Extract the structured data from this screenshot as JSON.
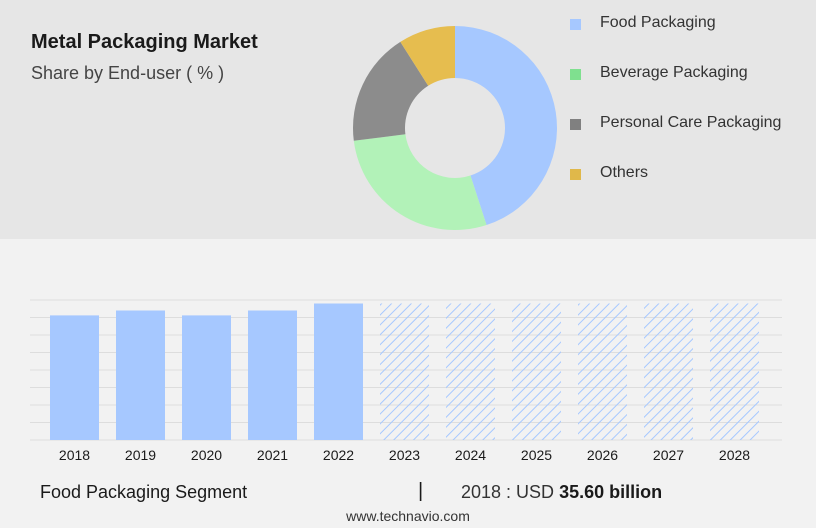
{
  "title": "Metal Packaging Market",
  "subtitle": "Share by End-user ( % )",
  "colors": {
    "food": "#a6c8ff",
    "beverage": "#b2f2b8",
    "personal_care": "#8c8c8c",
    "others": "#e6bd4f",
    "legend_beverage": "#7fe08f",
    "legend_personal_care": "#808080",
    "legend_others": "#e0b84a",
    "forecast_hatch": "#a6c8ff"
  },
  "chart_data": [
    {
      "type": "pie",
      "variant": "donut",
      "series": [
        {
          "name": "Food Packaging",
          "value": 45
        },
        {
          "name": "Beverage Packaging",
          "value": 28
        },
        {
          "name": "Personal Care Packaging",
          "value": 18
        },
        {
          "name": "Others",
          "value": 9
        }
      ],
      "legend_placement": "right"
    },
    {
      "type": "bar",
      "categories": [
        "2018",
        "2019",
        "2020",
        "2021",
        "2022",
        "2023",
        "2024",
        "2025",
        "2026",
        "2027",
        "2028"
      ],
      "values": [
        35.6,
        37.0,
        35.6,
        37.0,
        39.0,
        39.0,
        39.0,
        39.0,
        39.0,
        39.0,
        39.0
      ],
      "forecast_from": "2023",
      "ylim": [
        0,
        40
      ],
      "grid": true
    }
  ],
  "footer": {
    "segment": "Food Packaging Segment",
    "separator": "|",
    "stat_prefix": "2018 : USD",
    "stat_value": "35.60 billion"
  },
  "source": "www.technavio.com"
}
